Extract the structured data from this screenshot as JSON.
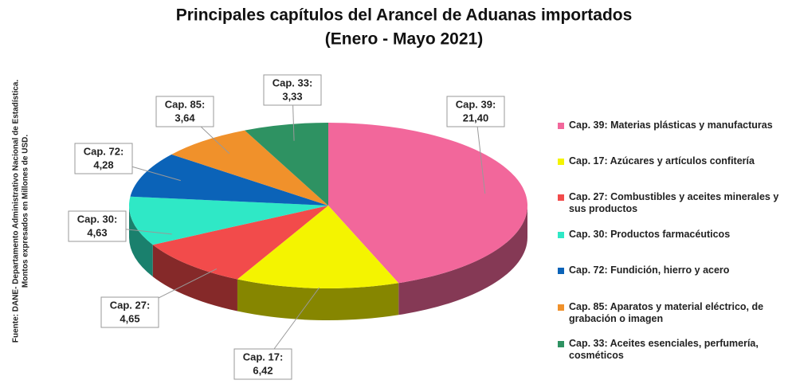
{
  "chart_data": {
    "type": "pie3d",
    "title": "Principales capítulos del Arancel de Aduanas importados",
    "subtitle": "(Enero - Mayo 2021)",
    "source": "Fuente: DANE- Departamento Administrativo Nacional de Estadística.",
    "note": "Montos expresados en Millones de USD.",
    "categories": [
      "Cap. 39: Materias plásticas y manufacturas",
      "Cap. 17: Azúcares y artículos confitería",
      "Cap. 27: Combustibles y aceites minerales y sus productos",
      "Cap. 30: Productos farmacéuticos",
      "Cap. 72: Fundición, hierro y acero",
      "Cap. 85: Aparatos y material eléctrico, de grabación o imagen",
      "Cap. 33: Aceites esenciales, perfumería, cosméticos"
    ],
    "label_prefixes": [
      "Cap. 39:",
      "Cap. 17:",
      "Cap. 27:",
      "Cap. 30:",
      "Cap. 72:",
      "Cap. 85:",
      "Cap. 33:"
    ],
    "values": [
      21.4,
      6.42,
      4.65,
      4.63,
      4.28,
      3.64,
      3.33
    ],
    "value_labels": [
      "21,40",
      "6,42",
      "4,65",
      "4,63",
      "4,28",
      "3,64",
      "3,33"
    ],
    "colors": [
      "#f2679b",
      "#f4f400",
      "#f24b4b",
      "#2fe8c6",
      "#0b63b8",
      "#f0912b",
      "#2e9262"
    ],
    "legend": "right"
  }
}
